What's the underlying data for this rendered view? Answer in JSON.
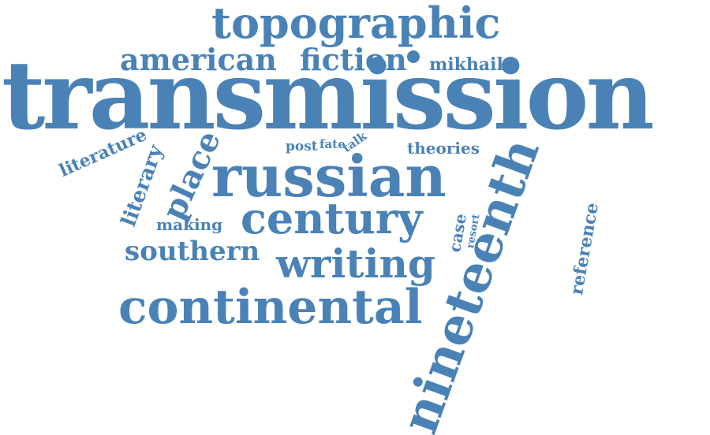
{
  "color": "#4a82b6",
  "words": {
    "topographic": "topographic",
    "american": "american",
    "fiction": "fiction",
    "mikhail": "mikhail",
    "transmission": "transmission",
    "literature": "literature",
    "literary": "literary",
    "place": "place",
    "post": "post",
    "fate": "fate",
    "talk": "talk",
    "theories": "theories",
    "russian": "russian",
    "nineteenth": "nineteenth",
    "reference": "reference",
    "making": "making",
    "century": "century",
    "case": "case",
    "resort": "resort",
    "southern": "southern",
    "writing": "writing",
    "continental": "continental"
  }
}
